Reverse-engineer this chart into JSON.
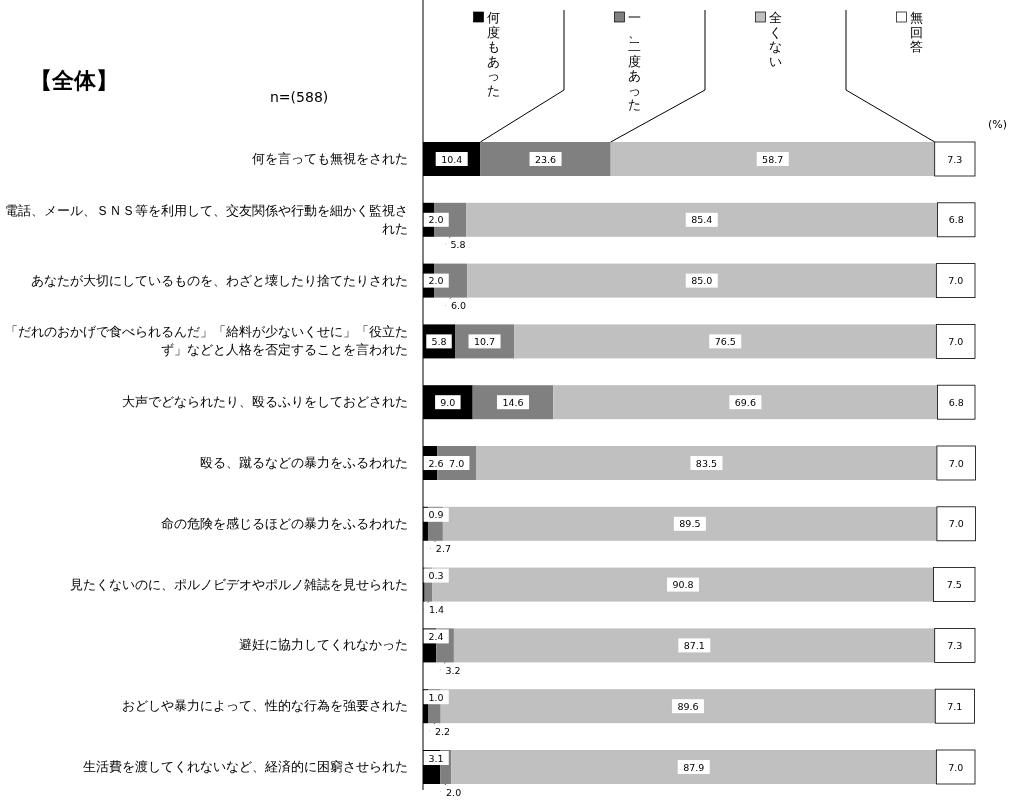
{
  "chart_data": {
    "type": "bar",
    "orientation": "horizontal",
    "stacked": true,
    "title": "【全体】",
    "annotations": [
      "n=(588)",
      "(%)"
    ],
    "legend": "top",
    "xlim": [
      0,
      100
    ],
    "categories": [
      "何を言っても無視をされた",
      "電話、メール、ＳＮＳ等を利用して、交友関係や行動を細かく監視された",
      "あなたが大切にしているものを、わざと壊したり捨てたりされた",
      "「だれのおかげで食べられるんだ」「給料が少ないくせに」「役立たず」などと人格を否定することを言われた",
      "大声でどなられたり、殴るふりをしておどされた",
      "殴る、蹴るなどの暴力をふるわれた",
      "命の危険を感じるほどの暴力をふるわれた",
      "見たくないのに、ポルノビデオやポルノ雑誌を見せられた",
      "避妊に協力してくれなかった",
      "おどしや暴力によって、性的な行為を強要された",
      "生活費を渡してくれないなど、経済的に困窮させられた"
    ],
    "series": [
      {
        "name": "何度もあった",
        "color": "#000000",
        "values": [
          10.4,
          2.0,
          2.0,
          5.8,
          9.0,
          2.6,
          0.9,
          0.3,
          2.4,
          1.0,
          3.1
        ],
        "value_labels": [
          "10.4",
          "2.0",
          "2.0",
          "5.8",
          "9.0",
          "2.6",
          "0.9",
          "0.3",
          "2.4",
          "1.0",
          "3.1"
        ]
      },
      {
        "name": "一、二度あった",
        "color": "#808080",
        "values": [
          23.6,
          5.8,
          6.0,
          10.7,
          14.6,
          7.0,
          2.7,
          1.4,
          3.2,
          2.2,
          2.0
        ],
        "value_labels": [
          "23.6",
          "5.8",
          "6.0",
          "10.7",
          "14.6",
          "7.0",
          "2.7",
          "1.4",
          "3.2",
          "2.2",
          "2.0"
        ]
      },
      {
        "name": "全くない",
        "color": "#c0c0c0",
        "values": [
          58.7,
          85.4,
          85.0,
          76.5,
          69.6,
          83.5,
          89.5,
          90.8,
          87.1,
          89.6,
          87.9
        ],
        "value_labels": [
          "58.7",
          "85.4",
          "85.0",
          "76.5",
          "69.6",
          "83.5",
          "89.5",
          "90.8",
          "87.1",
          "89.6",
          "87.9"
        ]
      },
      {
        "name": "無回答",
        "color": "#ffffff",
        "values": [
          7.3,
          6.8,
          7.0,
          7.0,
          6.8,
          7.0,
          7.0,
          7.5,
          7.3,
          7.1,
          7.0
        ],
        "value_labels": [
          "7.3",
          "6.8",
          "7.0",
          "7.0",
          "6.8",
          "7.0",
          "7.0",
          "7.5",
          "7.3",
          "7.1",
          "7.0"
        ]
      }
    ]
  }
}
